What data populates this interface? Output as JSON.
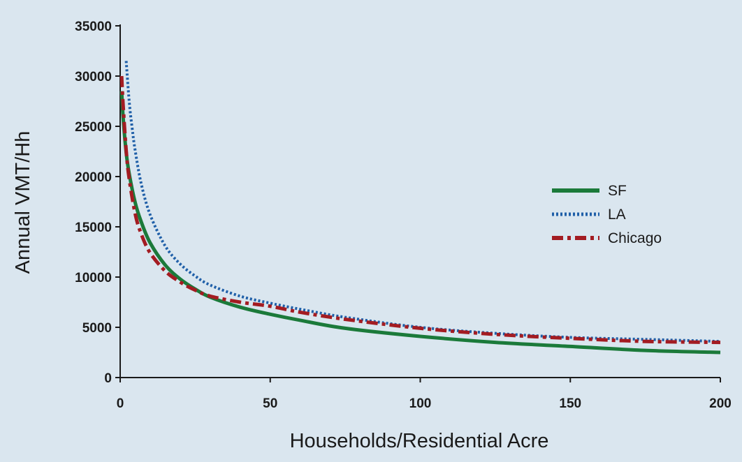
{
  "colors": {
    "background": "#dae6ef",
    "axis": "#1a1a1a",
    "sf": "#1b7a3a",
    "la": "#1f5fa8",
    "chicago": "#a31c22"
  },
  "chart_data": {
    "type": "line",
    "title": "",
    "xlabel": "Households/Residential Acre",
    "ylabel": "Annual VMT/Hh",
    "xlim": [
      0,
      200
    ],
    "ylim": [
      0,
      35000
    ],
    "xticks": [
      0,
      50,
      100,
      150,
      200
    ],
    "yticks": [
      0,
      5000,
      10000,
      15000,
      20000,
      25000,
      30000,
      35000
    ],
    "xtick_labels": [
      "0",
      "50",
      "100",
      "150",
      "200"
    ],
    "ytick_labels": [
      "0",
      "5000",
      "10000",
      "15000",
      "20000",
      "25000",
      "30000",
      "35000"
    ],
    "grid": false,
    "legend_position": "center-right",
    "series": [
      {
        "name": "SF",
        "style": "solid",
        "x": [
          0.5,
          1,
          2,
          3,
          5,
          7,
          10,
          15,
          20,
          25,
          30,
          40,
          50,
          60,
          75,
          100,
          125,
          150,
          175,
          200
        ],
        "y": [
          28500,
          25800,
          22400,
          20300,
          17400,
          15500,
          13400,
          11200,
          9800,
          8800,
          8000,
          7000,
          6300,
          5700,
          4900,
          4100,
          3500,
          3100,
          2700,
          2500
        ]
      },
      {
        "name": "LA",
        "style": "dotted",
        "x": [
          2,
          3,
          4,
          5,
          7,
          10,
          15,
          20,
          25,
          30,
          40,
          50,
          60,
          75,
          100,
          125,
          150,
          175,
          200
        ],
        "y": [
          31500,
          27500,
          24800,
          22600,
          19300,
          16200,
          13100,
          11300,
          10100,
          9200,
          8100,
          7400,
          6800,
          6000,
          5000,
          4400,
          4000,
          3800,
          3600
        ]
      },
      {
        "name": "Chicago",
        "style": "dash-dot",
        "x": [
          0.5,
          1,
          2,
          3,
          5,
          7,
          10,
          15,
          20,
          25,
          30,
          40,
          50,
          60,
          75,
          100,
          125,
          150,
          175,
          200
        ],
        "y": [
          30000,
          27000,
          22600,
          19800,
          16300,
          14300,
          12400,
          10600,
          9500,
          8700,
          8100,
          7500,
          7100,
          6500,
          5800,
          4900,
          4300,
          3900,
          3600,
          3500
        ]
      }
    ]
  }
}
